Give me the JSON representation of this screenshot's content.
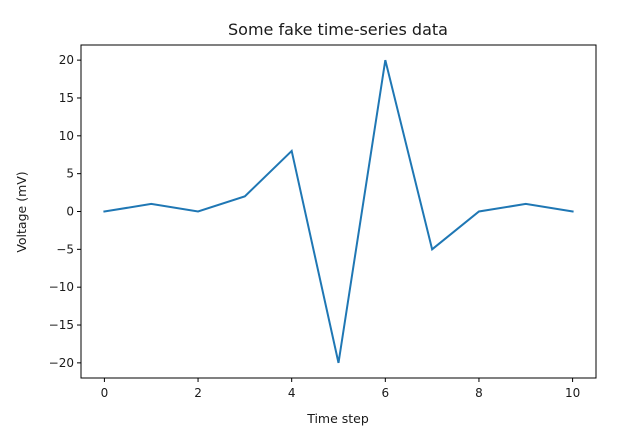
{
  "chart_data": {
    "type": "line",
    "title": "Some fake time-series data",
    "xlabel": "Time step",
    "ylabel": "Voltage (mV)",
    "x": [
      0,
      1,
      2,
      3,
      4,
      5,
      6,
      7,
      8,
      9,
      10
    ],
    "series": [
      {
        "values": [
          0,
          1,
          0,
          2,
          8,
          -20,
          20,
          -5,
          0,
          1,
          0
        ],
        "color": "#1f77b4"
      }
    ],
    "xlim": [
      -0.5,
      10.5
    ],
    "ylim": [
      -22,
      22
    ],
    "xticks": [
      0,
      2,
      4,
      6,
      8,
      10
    ],
    "yticks": [
      -20,
      -15,
      -10,
      -5,
      0,
      5,
      10,
      15,
      20
    ],
    "grid": false,
    "legend": "none"
  }
}
